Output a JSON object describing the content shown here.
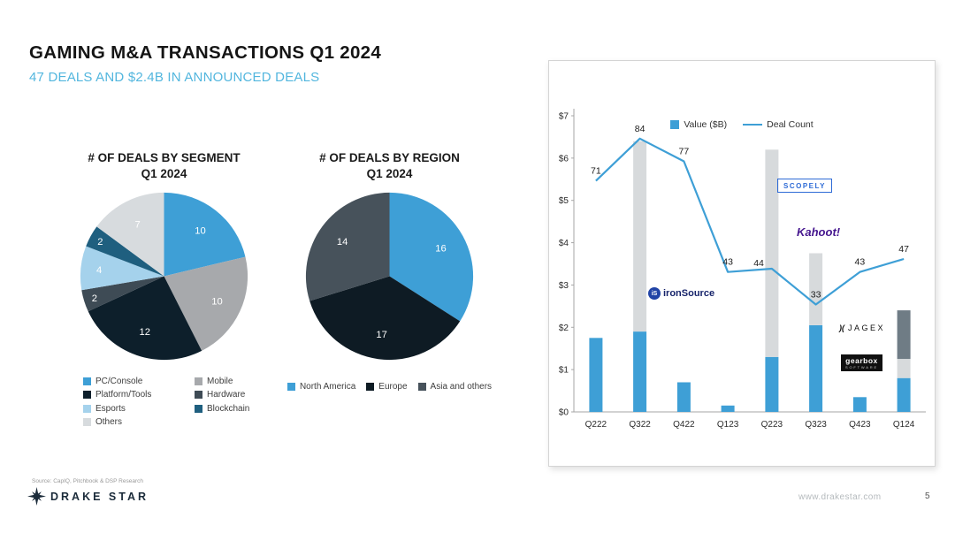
{
  "header": {
    "title": "GAMING M&A TRANSACTIONS Q1 2024",
    "subtitle": "47 DEALS AND $2.4B IN ANNOUNCED DEALS"
  },
  "chart_data": [
    {
      "type": "pie",
      "title": "# OF DEALS BY SEGMENT Q1 2024",
      "title_lines": [
        "# OF DEALS BY SEGMENT",
        "Q1 2024"
      ],
      "labels": [
        "PC/Console",
        "Mobile",
        "Platform/Tools",
        "Hardware",
        "Esports",
        "Blockchain",
        "Others"
      ],
      "values": [
        10,
        10,
        12,
        2,
        4,
        2,
        7
      ],
      "colors": [
        "#3E9FD6",
        "#A7A9AC",
        "#0D1F2B",
        "#3E4B55",
        "#A5D2EC",
        "#1F5F7F",
        "#D7DBDE"
      ],
      "legend_order": [
        0,
        2,
        4,
        6,
        1,
        3,
        5
      ],
      "legend_position": "bottom"
    },
    {
      "type": "pie",
      "title": "# OF DEALS BY REGION Q1 2024",
      "title_lines": [
        "# OF DEALS BY REGION",
        "Q1 2024"
      ],
      "labels": [
        "North America",
        "Europe",
        "Asia and others"
      ],
      "values": [
        16,
        17,
        14
      ],
      "colors": [
        "#3E9FD6",
        "#0E1B24",
        "#47525B"
      ],
      "legend_order": [
        0,
        1,
        2
      ],
      "legend_position": "bottom"
    },
    {
      "type": "bar",
      "subtype": "stacked-bar-with-line",
      "categories": [
        "Q222",
        "Q322",
        "Q422",
        "Q123",
        "Q223",
        "Q323",
        "Q423",
        "Q124"
      ],
      "series": [
        {
          "name": "Value ($B)",
          "type": "bar",
          "color": "#3E9FD6",
          "values": [
            1.75,
            1.9,
            0.7,
            0.15,
            1.3,
            2.05,
            0.35,
            0.8
          ]
        },
        {
          "name": "value-stack-light-gray",
          "type": "bar",
          "color": "#D7DADC",
          "values": [
            0,
            4.5,
            0,
            0,
            4.9,
            1.7,
            0,
            0.45
          ]
        },
        {
          "name": "value-stack-dark-gray",
          "type": "bar",
          "color": "#6F7C85",
          "values": [
            0,
            0,
            0,
            0,
            0,
            0,
            0,
            1.15
          ]
        },
        {
          "name": "Deal Count",
          "type": "line",
          "color": "#3E9FD6",
          "values": [
            71,
            84,
            77,
            43,
            44,
            33,
            43,
            47
          ]
        }
      ],
      "legend": [
        "Value ($B)",
        "Deal Count"
      ],
      "y_ticks": [
        "$0",
        "$1",
        "$2",
        "$3",
        "$4",
        "$5",
        "$6",
        "$7"
      ],
      "ylim": [
        0,
        7
      ],
      "secondary_ylim": [
        0,
        91
      ],
      "grid": false,
      "legend_position": "top",
      "point_label_pos": [
        "above",
        "above",
        "above",
        "above",
        "left",
        "above",
        "above",
        "above"
      ]
    }
  ],
  "logos": {
    "ironsource": {
      "icon_text": "iS",
      "text": "ironSource"
    },
    "scopely": {
      "text": "SCOPELY"
    },
    "kahoot": {
      "text": "Kahoot!"
    },
    "jagex": {
      "mark": ")(",
      "text": "JAGEX"
    },
    "gearbox": {
      "text": "gearbox",
      "subtext": "SOFTWARE"
    }
  },
  "footer": {
    "source": "Source: CapIQ, Pitchbook & DSP Research",
    "brand": "DRAKE STAR",
    "url": "www.drakestar.com",
    "page": "5"
  }
}
